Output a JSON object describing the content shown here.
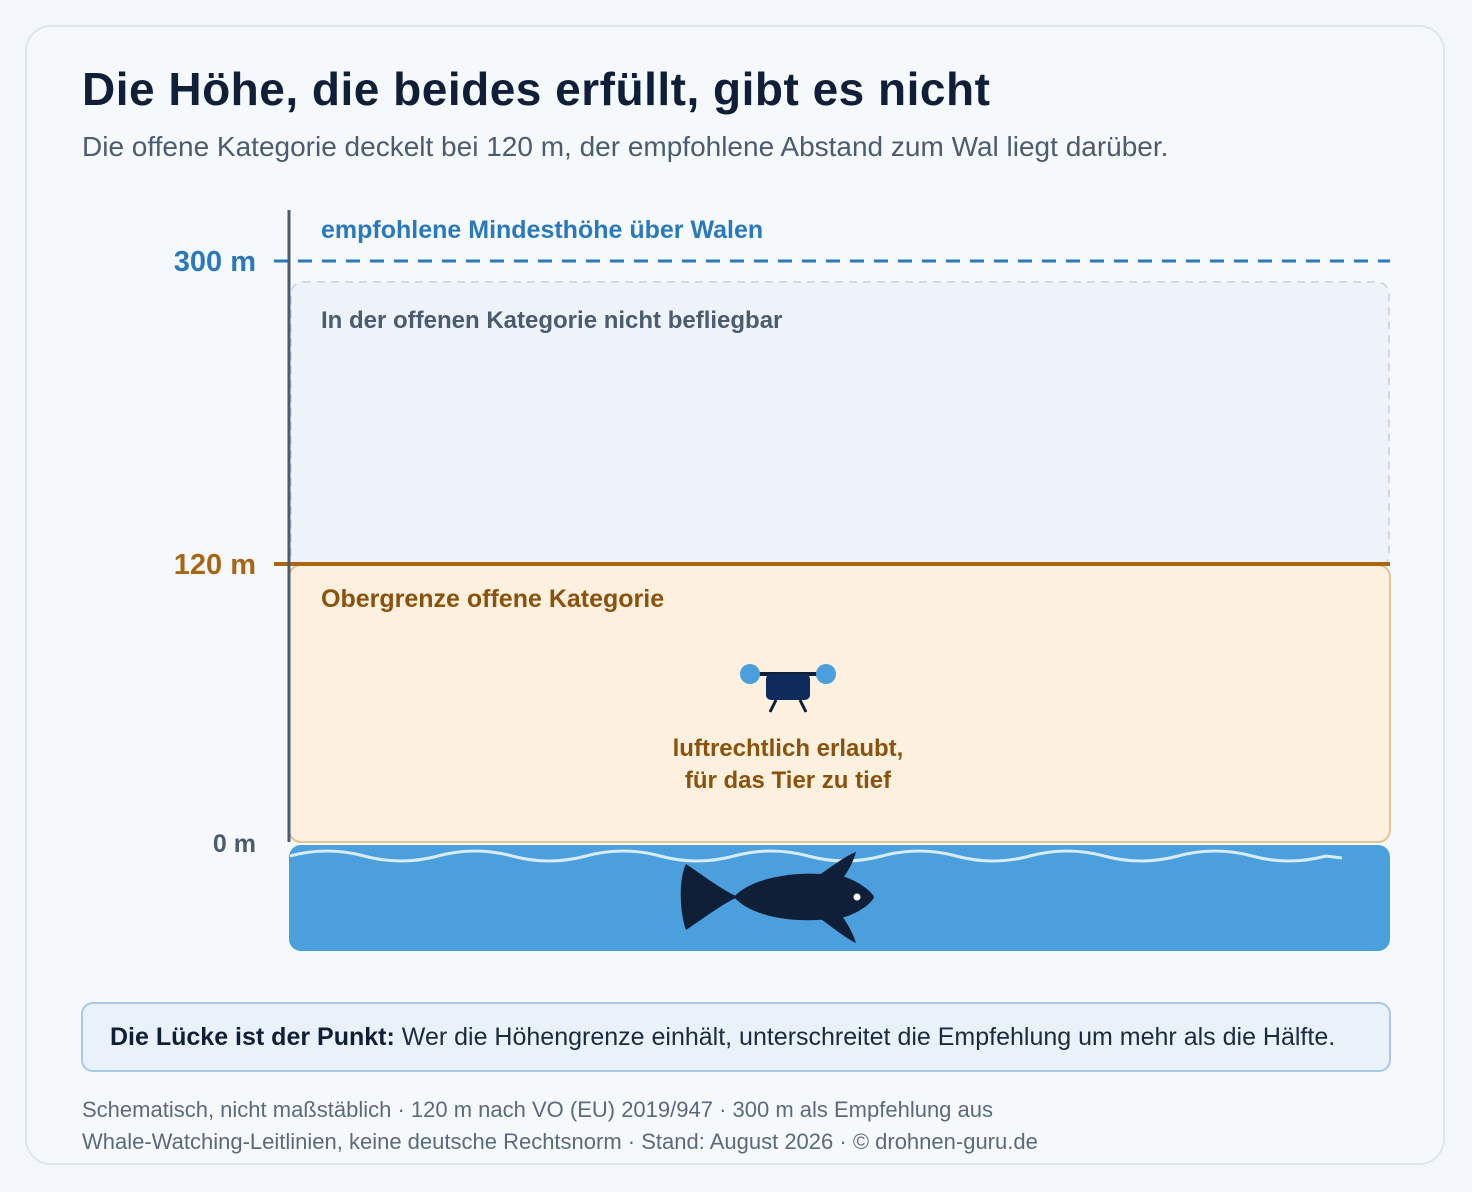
{
  "header": {
    "title": "Die Höhe, die beides erfüllt, gibt es nicht",
    "subtitle": "Die offene Kategorie deckelt bei 120 m, der empfohlene Abstand zum Wal liegt darüber."
  },
  "diagram": {
    "levels": [
      {
        "label": "300 m",
        "value_m": 300,
        "caption": "empfohlene Mindesthöhe über Walen",
        "color": "#2a78bd"
      },
      {
        "label": "120 m",
        "value_m": 120,
        "caption": "Obergrenze offene Kategorie",
        "color": "#a86512"
      },
      {
        "label": "0 m",
        "value_m": 0,
        "color": "#4b5b70"
      }
    ],
    "forbidden_zone_label": "In der offenen Kategorie nicht befliegbar",
    "drone_caption_line1": "luftrechtlich erlaubt,",
    "drone_caption_line2": "für das Tier zu tief",
    "water_color": "#4a9fdc",
    "icons": [
      "drone-icon",
      "whale-icon",
      "wave-icon"
    ]
  },
  "callout": {
    "bold": "Die Lücke ist der Punkt:",
    "text": "Wer die Höhengrenze einhält, unterschreitet die Empfehlung um mehr als die Hälfte."
  },
  "footnote": {
    "line1": "Schematisch, nicht maßstäblich · 120 m nach VO (EU) 2019/947 · 300 m als Empfehlung aus",
    "line2": "Whale-Watching-Leitlinien, keine deutsche Rechtsnorm · Stand: August 2026 · © drohnen-guru.de"
  }
}
